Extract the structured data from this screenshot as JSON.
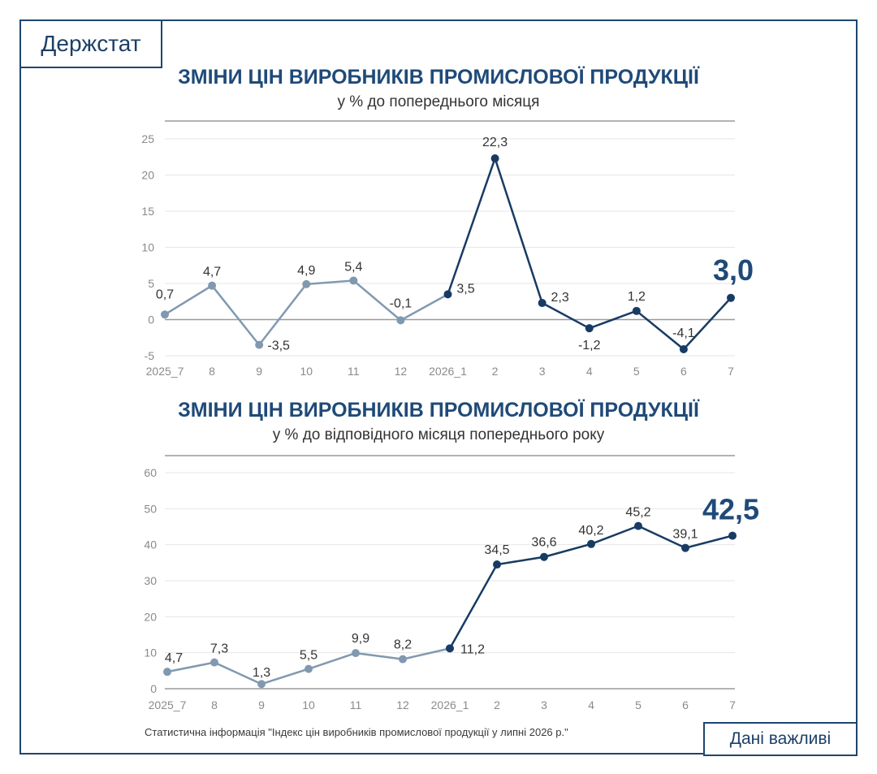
{
  "brand": {
    "logo": "Держстат",
    "badge": "Дані важливі"
  },
  "source_note": "Статистична інформація \"Індекс цін виробників промислової продукції у липні 2026 р.\"",
  "colors": {
    "past": "#8199b0",
    "current": "#173b64",
    "accent": "#1f4a78",
    "frame": "#1d4670"
  },
  "chart_data": [
    {
      "type": "line",
      "title": "ЗМІНИ ЦІН ВИРОБНИКІВ ПРОМИСЛОВОЇ ПРОДУКЦІЇ",
      "subtitle": "у % до попереднього місяця",
      "categories": [
        "2025_7",
        "8",
        "9",
        "10",
        "11",
        "12",
        "2026_1",
        "2",
        "3",
        "4",
        "5",
        "6",
        "7"
      ],
      "values": [
        0.7,
        4.7,
        -3.5,
        4.9,
        5.4,
        -0.1,
        3.5,
        22.3,
        2.3,
        -1.2,
        1.2,
        -4.1,
        3.0
      ],
      "value_labels": [
        "0,7",
        "4,7",
        "-3,5",
        "4,9",
        "5,4",
        "-0,1",
        "3,5",
        "22,3",
        "2,3",
        "-1,2",
        "1,2",
        "-4,1",
        "3,0"
      ],
      "yticks": [
        -5,
        0,
        5,
        10,
        15,
        20,
        25
      ],
      "ylim": [
        -5,
        25
      ],
      "highlight_from_index": 6,
      "grid": true
    },
    {
      "type": "line",
      "title": "ЗМІНИ ЦІН ВИРОБНИКІВ ПРОМИСЛОВОЇ ПРОДУКЦІЇ",
      "subtitle": "у % до відповідного місяця попереднього року",
      "categories": [
        "2025_7",
        "8",
        "9",
        "10",
        "11",
        "12",
        "2026_1",
        "2",
        "3",
        "4",
        "5",
        "6",
        "7"
      ],
      "values": [
        4.7,
        7.3,
        1.3,
        5.5,
        9.9,
        8.2,
        11.2,
        34.5,
        36.6,
        40.2,
        45.2,
        39.1,
        42.5
      ],
      "value_labels": [
        "4,7",
        "7,3",
        "1,3",
        "5,5",
        "9,9",
        "8,2",
        "11,2",
        "34,5",
        "36,6",
        "40,2",
        "45,2",
        "39,1",
        "42,5"
      ],
      "yticks": [
        0,
        10,
        20,
        30,
        40,
        50,
        60
      ],
      "ylim": [
        0,
        60
      ],
      "highlight_from_index": 6,
      "grid": true
    }
  ]
}
